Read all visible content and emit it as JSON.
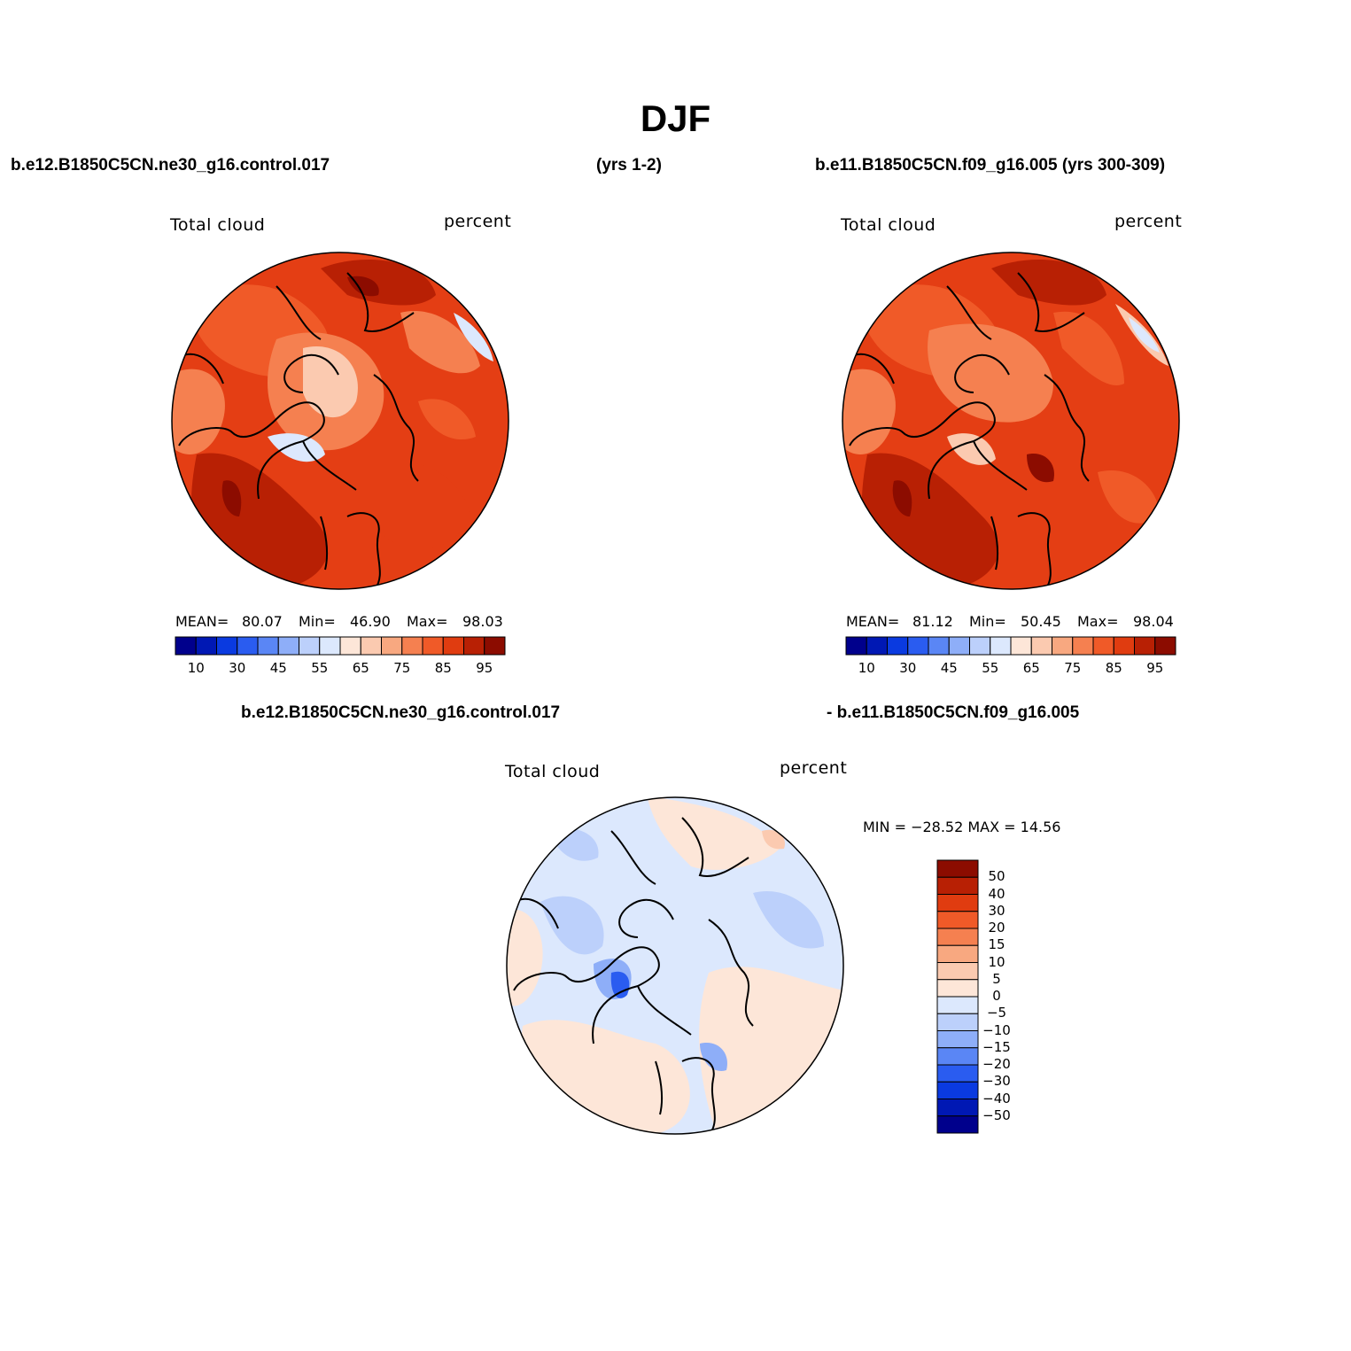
{
  "main_title": "DJF",
  "header": {
    "left_case": "b.e12.B1850C5CN.ne30_g16.control.017",
    "years_left": "(yrs 1-2)",
    "right_case": "b.e11.B1850C5CN.f09_g16.005 (yrs 300-309)",
    "diff_left": "b.e12.B1850C5CN.ne30_g16.control.017",
    "diff_right": "- b.e11.B1850C5CN.f09_g16.005"
  },
  "panel1": {
    "variable": "Total cloud",
    "units": "percent",
    "mean_label": "MEAN=",
    "mean": "80.07",
    "min_label": "Min=",
    "min": "46.90",
    "max_label": "Max=",
    "max": "98.03"
  },
  "panel2": {
    "variable": "Total cloud",
    "units": "percent",
    "mean_label": "MEAN=",
    "mean": "81.12",
    "min_label": "Min=",
    "min": "50.45",
    "max_label": "Max=",
    "max": "98.04"
  },
  "panel3": {
    "variable": "Total cloud",
    "units": "percent",
    "minmax": "MIN = −28.52 MAX =   14.56"
  },
  "colorbar_abs": {
    "tick_labels": [
      "10",
      "30",
      "45",
      "55",
      "65",
      "75",
      "85",
      "95"
    ],
    "colors": [
      "#00008c",
      "#0018b4",
      "#0a3ae0",
      "#2a5cf0",
      "#5a86f5",
      "#8eaef8",
      "#bcd0fb",
      "#dce8fd",
      "#fde6d8",
      "#fbcab0",
      "#f8a880",
      "#f58050",
      "#f05a28",
      "#e03c10",
      "#b82004",
      "#8c0c00"
    ]
  },
  "colorbar_diff": {
    "tick_labels": [
      "50",
      "40",
      "30",
      "20",
      "15",
      "10",
      "5",
      "0",
      "−5",
      "−10",
      "−15",
      "−20",
      "−30",
      "−40",
      "−50"
    ],
    "colors": [
      "#8c0c00",
      "#b82004",
      "#e03c10",
      "#f05a28",
      "#f58050",
      "#f8a880",
      "#fbcab0",
      "#fde6d8",
      "#dce8fd",
      "#bcd0fb",
      "#8eaef8",
      "#5a86f5",
      "#2a5cf0",
      "#0a3ae0",
      "#0018b4",
      "#00008c"
    ]
  },
  "maps": {
    "p1_colors": [
      "#e43e14",
      "#f05a28",
      "#f58050",
      "#fbcab0",
      "#b82004",
      "#dce8fd",
      "#8c0c00"
    ],
    "p2_colors": [
      "#e43e14",
      "#f05a28",
      "#f58050",
      "#fbcab0",
      "#b82004",
      "#dce8fd",
      "#8c0c00"
    ],
    "p3_colors": [
      "#dce8fd",
      "#fde6d8",
      "#bcd0fb",
      "#8eaef8",
      "#fbcab0",
      "#2a5cf0"
    ]
  }
}
